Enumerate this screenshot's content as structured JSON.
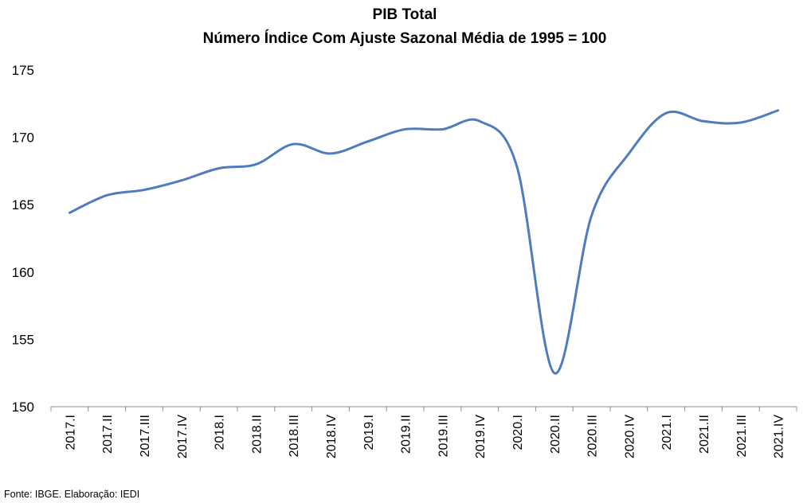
{
  "chart_data": {
    "type": "line",
    "title": "PIB Total",
    "subtitle": "Número Índice Com Ajuste Sazonal Média de 1995 = 100",
    "categories": [
      "2017.I",
      "2017.II",
      "2017.III",
      "2017.IV",
      "2018.I",
      "2018.II",
      "2018.III",
      "2018.IV",
      "2019.I",
      "2019.II",
      "2019.III",
      "2019.IV",
      "2020.I",
      "2020.II",
      "2020.III",
      "2020.IV",
      "2021.I",
      "2021.II",
      "2021.III",
      "2021.IV"
    ],
    "series": [
      {
        "values": [
          164.4,
          165.7,
          166.1,
          166.8,
          167.7,
          168.0,
          169.5,
          168.8,
          169.7,
          170.6,
          170.6,
          171.2,
          167.8,
          152.5,
          164.2,
          168.8,
          171.8,
          171.2,
          171.1,
          172.0
        ]
      }
    ],
    "yticks": [
      150,
      155,
      160,
      165,
      170,
      175
    ],
    "ylim": [
      150,
      175
    ],
    "grid": false,
    "legend": "none",
    "source": "Fonte: IBGE. Elaboração: IEDI",
    "colors": {
      "line": "#4f7bbf",
      "axis": "#8c8c8c",
      "text": "#000000"
    }
  }
}
